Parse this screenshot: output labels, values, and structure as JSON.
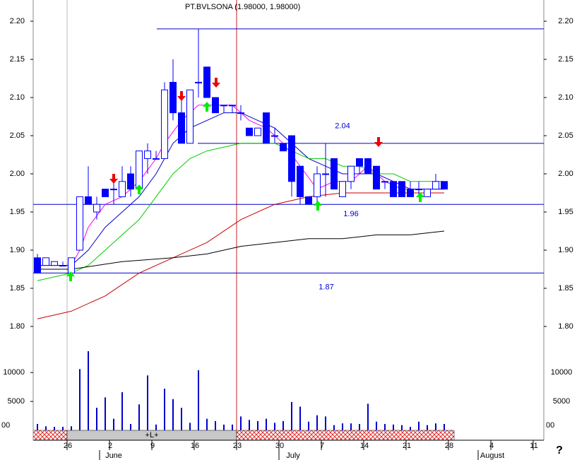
{
  "chart_data": {
    "type": "candlestick",
    "title": "PT.BVLSONA (1.98000, 1.98000)",
    "categories": [
      null,
      null,
      null,
      null,
      "26",
      null,
      null,
      null,
      null,
      "2",
      null,
      null,
      null,
      null,
      "9",
      null,
      null,
      null,
      null,
      "16",
      null,
      null,
      null,
      null,
      "23",
      null,
      null,
      null,
      null,
      "30",
      null,
      null,
      null,
      null,
      "7",
      null,
      null,
      null,
      null,
      "14",
      null,
      null,
      null,
      null,
      "21",
      null,
      null,
      null,
      null,
      "28",
      null,
      null,
      null,
      null,
      "4",
      null,
      null,
      null,
      null,
      "11"
    ],
    "months": [
      "June",
      "July",
      "August"
    ],
    "open": [
      1.89,
      1.88,
      1.88,
      1.88,
      1.87,
      1.9,
      1.97,
      1.95,
      1.98,
      1.98,
      1.97,
      2.0,
      1.98,
      2.02,
      2.02,
      2.02,
      2.12,
      2.08,
      2.04,
      2.12,
      2.14,
      2.1,
      2.09,
      2.09,
      2.08,
      2.06,
      2.05,
      2.08,
      2.05,
      2.04,
      2.05,
      2.01,
      1.97,
      1.97,
      2.0,
      2.02,
      1.97,
      1.99,
      2.02,
      2.02,
      2.01,
      1.99,
      1.99,
      1.99,
      1.98,
      1.98,
      1.97,
      1.98,
      1.99,
      null,
      null,
      null,
      null,
      null,
      null,
      null,
      null,
      null,
      null,
      null
    ],
    "high": [
      1.895,
      1.89,
      1.885,
      1.885,
      1.89,
      1.97,
      2.01,
      1.97,
      1.98,
      1.99,
      2.01,
      2.01,
      2.03,
      2.04,
      2.03,
      2.12,
      2.15,
      2.1,
      2.11,
      2.19,
      2.14,
      2.1,
      2.09,
      2.09,
      2.09,
      2.06,
      2.06,
      2.08,
      2.06,
      2.04,
      2.05,
      2.01,
      1.97,
      2.01,
      2.04,
      2.02,
      1.99,
      2.01,
      2.02,
      2.02,
      2.01,
      1.99,
      1.99,
      1.99,
      1.99,
      1.99,
      1.98,
      2.0,
      1.99,
      null,
      null,
      null,
      null,
      null,
      null,
      null,
      null,
      null,
      null,
      null
    ],
    "low": [
      1.87,
      1.88,
      1.88,
      1.88,
      1.87,
      1.9,
      1.96,
      1.94,
      1.97,
      1.96,
      1.97,
      1.97,
      1.98,
      2.0,
      2.02,
      2.02,
      2.07,
      2.04,
      2.04,
      2.1,
      2.1,
      2.08,
      2.08,
      2.08,
      2.07,
      2.05,
      2.05,
      2.04,
      2.04,
      2.03,
      1.97,
      1.96,
      1.96,
      1.96,
      1.97,
      1.98,
      1.97,
      1.98,
      2.0,
      2.0,
      1.98,
      1.98,
      1.97,
      1.97,
      1.97,
      1.97,
      1.97,
      1.98,
      1.98,
      null,
      null,
      null,
      null,
      null,
      null,
      null,
      null,
      null,
      null,
      null
    ],
    "close": [
      1.87,
      1.89,
      1.885,
      1.88,
      1.89,
      1.97,
      1.96,
      1.96,
      1.97,
      1.98,
      1.99,
      1.98,
      2.03,
      2.03,
      2.02,
      2.11,
      2.08,
      2.04,
      2.11,
      2.12,
      2.1,
      2.08,
      2.09,
      2.09,
      2.08,
      2.05,
      2.06,
      2.04,
      2.05,
      2.03,
      1.99,
      1.97,
      1.96,
      2.0,
      2.0,
      1.98,
      1.99,
      2.01,
      2.01,
      2.0,
      1.98,
      1.99,
      1.97,
      1.97,
      1.97,
      1.98,
      1.98,
      1.99,
      1.98,
      null,
      null,
      null,
      null,
      null,
      null,
      null,
      null,
      null,
      null,
      null
    ],
    "color": "#0000ff",
    "volume": [
      1100,
      700,
      600,
      600,
      700,
      10600,
      13700,
      3900,
      5700,
      2000,
      6600,
      1100,
      4500,
      9500,
      1000,
      7200,
      5400,
      3900,
      1300,
      10400,
      2000,
      1600,
      1000,
      1000,
      2400,
      1800,
      1600,
      2000,
      1300,
      1600,
      4900,
      4100,
      1500,
      2600,
      2400,
      900,
      1200,
      1200,
      1100,
      4600,
      1500,
      1100,
      1000,
      900,
      600,
      1500,
      900,
      1200,
      1100,
      null,
      null,
      null,
      null,
      null,
      null,
      null,
      null,
      null,
      null,
      null
    ],
    "volume_color": "#0000cc",
    "lines": [
      {
        "color": "#ff00ff",
        "x": [
          0,
          4,
          5,
          6,
          8,
          10,
          12,
          14,
          15,
          17,
          19,
          21,
          23,
          25,
          27,
          29,
          31,
          33,
          35,
          37,
          39,
          41,
          43,
          45,
          48
        ],
        "values": [
          1.88,
          1.88,
          1.9,
          1.93,
          1.96,
          1.97,
          1.99,
          2.02,
          2.04,
          2.07,
          2.09,
          2.09,
          2.09,
          2.07,
          2.06,
          2.04,
          2.01,
          1.98,
          1.99,
          1.99,
          2.01,
          1.99,
          1.98,
          1.98,
          1.98
        ]
      },
      {
        "color": "#0000cc",
        "x": [
          0,
          4,
          6,
          8,
          10,
          12,
          14,
          16,
          18,
          20,
          22,
          24,
          26,
          28,
          30,
          32,
          34,
          36,
          38,
          40,
          42,
          44,
          46,
          48
        ],
        "values": [
          1.88,
          1.88,
          1.9,
          1.93,
          1.95,
          1.97,
          2.0,
          2.04,
          2.06,
          2.07,
          2.08,
          2.08,
          2.07,
          2.06,
          2.04,
          2.02,
          2.01,
          2.0,
          2.0,
          2.0,
          1.99,
          1.98,
          1.98,
          1.98
        ]
      },
      {
        "color": "#00cc00",
        "x": [
          0,
          4,
          6,
          8,
          10,
          12,
          14,
          16,
          18,
          20,
          22,
          24,
          26,
          28,
          30,
          32,
          34,
          36,
          38,
          40,
          42,
          44,
          46,
          48
        ],
        "values": [
          1.86,
          1.87,
          1.88,
          1.9,
          1.92,
          1.94,
          1.97,
          2.0,
          2.02,
          2.03,
          2.035,
          2.04,
          2.04,
          2.04,
          2.03,
          2.02,
          2.02,
          2.01,
          2.01,
          2.0,
          2.0,
          1.99,
          1.99,
          1.99
        ]
      },
      {
        "color": "#cc0000",
        "x": [
          0,
          4,
          8,
          12,
          16,
          20,
          24,
          28,
          32,
          36,
          40,
          44,
          48
        ],
        "values": [
          1.81,
          1.82,
          1.84,
          1.87,
          1.89,
          1.91,
          1.94,
          1.96,
          1.97,
          1.975,
          1.975,
          1.975,
          1.975
        ]
      },
      {
        "color": "#000000",
        "x": [
          0,
          4,
          10,
          16,
          20,
          24,
          28,
          32,
          36,
          40,
          44,
          48
        ],
        "values": [
          1.875,
          1.875,
          1.885,
          1.89,
          1.895,
          1.905,
          1.91,
          1.915,
          1.915,
          1.92,
          1.92,
          1.925
        ]
      }
    ],
    "resistance_lines": [
      2.19
    ],
    "level_lines": [
      2.04,
      1.96,
      1.87
    ],
    "level_color": "#0000cc",
    "ylim": [
      1.775,
      2.2204
    ],
    "yticks": [
      {
        "value": 1.8,
        "label": "1.80"
      },
      {
        "value": 1.85,
        "label": "1.85"
      },
      {
        "value": 1.9,
        "label": "1.90"
      },
      {
        "value": 1.95,
        "label": "1.95"
      },
      {
        "value": 2.0,
        "label": "2.00"
      },
      {
        "value": 2.05,
        "label": "2.05"
      },
      {
        "value": 2.1,
        "label": "2.10"
      },
      {
        "value": 2.15,
        "label": "2.15"
      },
      {
        "value": 2.2,
        "label": "2.20"
      }
    ],
    "y2lim": [
      0,
      17000
    ],
    "y2ticks": [
      5000,
      10000
    ],
    "volume_cut_label": "00",
    "band_label": "+L+",
    "help_label": "?"
  }
}
